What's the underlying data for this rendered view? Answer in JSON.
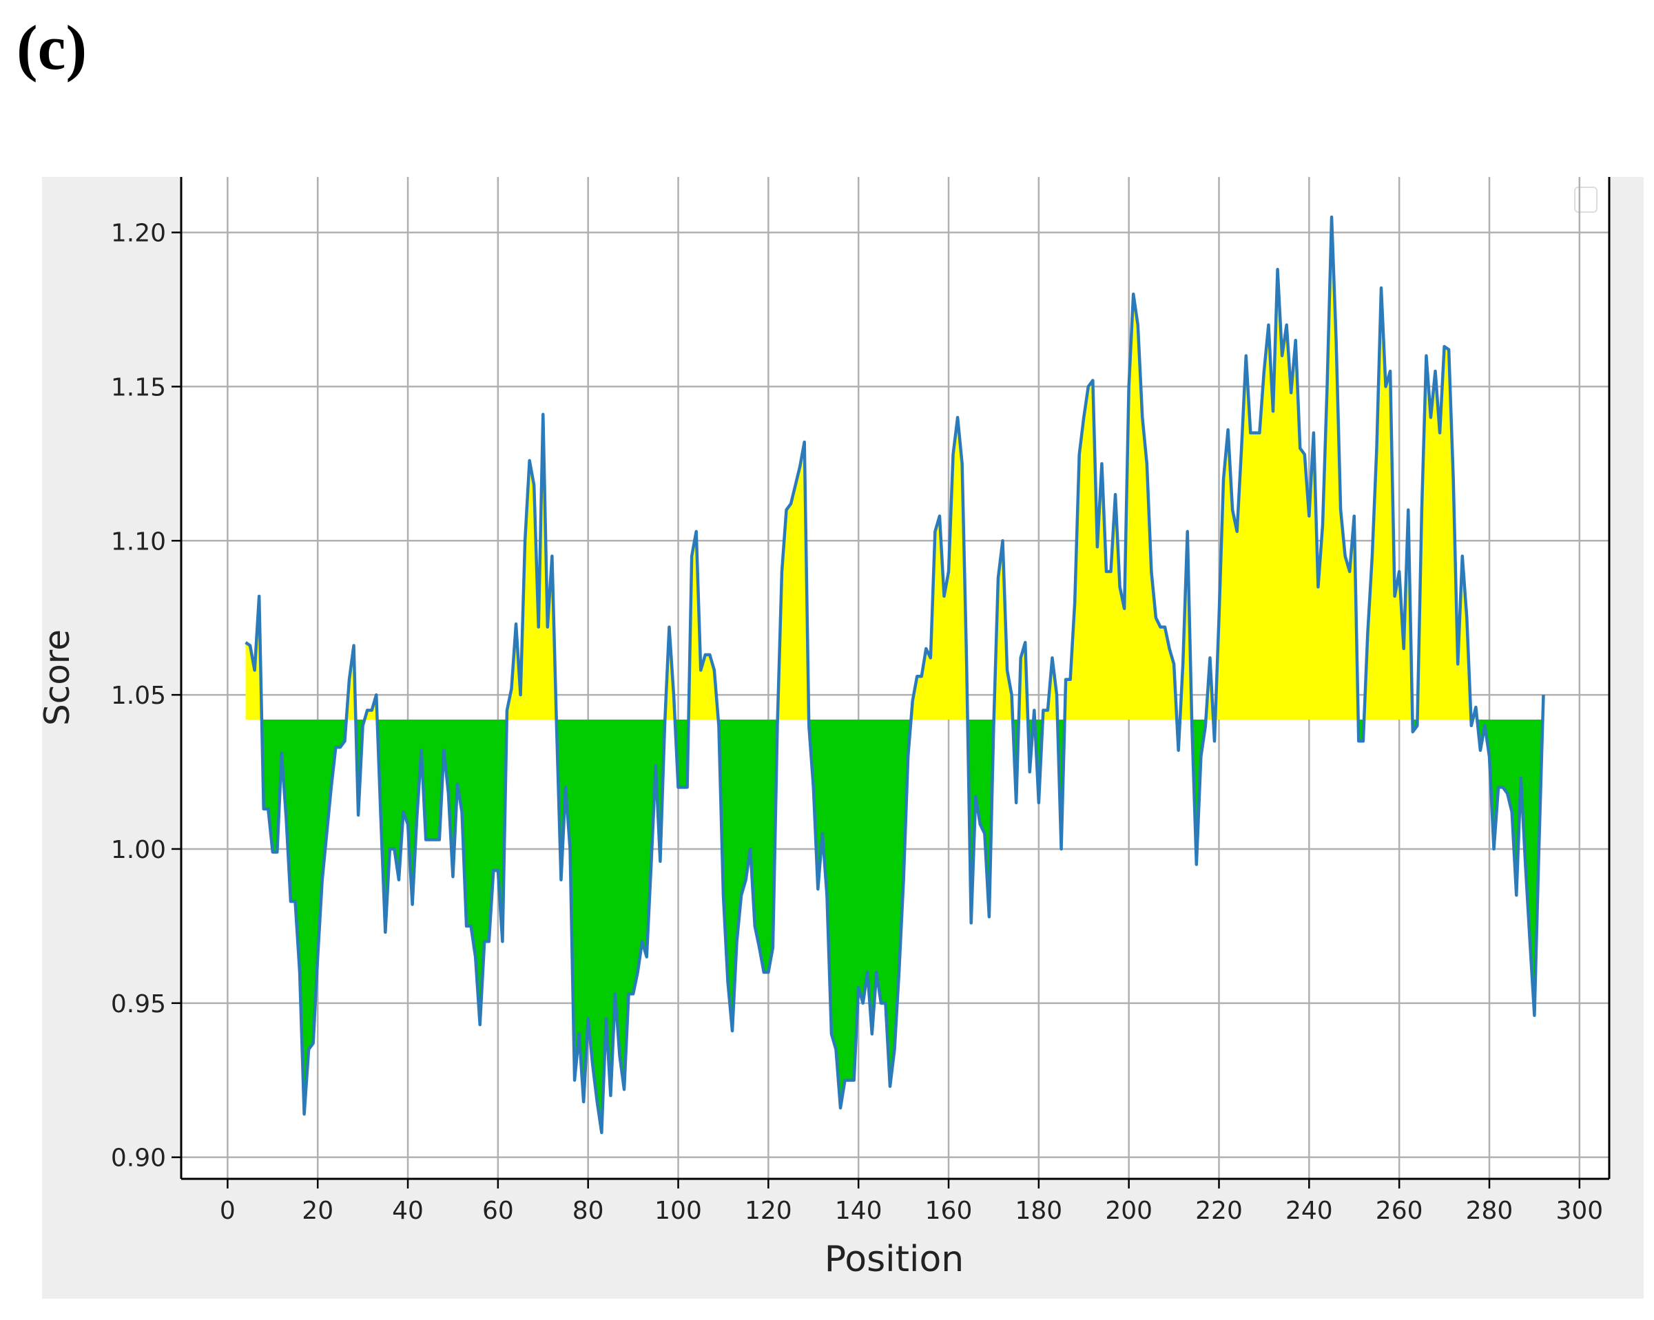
{
  "panel_label": "(c)",
  "chart_data": {
    "type": "line",
    "x_label": "Position",
    "y_label": "Score",
    "color": "#2b7bba",
    "fill_threshold": 1.042,
    "fill_above_color": "#ffff00",
    "fill_below_color": "#00cc00",
    "grid": true,
    "xlim": [
      -10.3,
      306.6
    ],
    "ylim": [
      0.893,
      1.218
    ],
    "xticks": [
      0,
      20,
      40,
      60,
      80,
      100,
      120,
      140,
      160,
      180,
      200,
      220,
      240,
      260,
      280,
      300
    ],
    "yticks": [
      {
        "value": 0.9,
        "label": "0.90"
      },
      {
        "value": 0.95,
        "label": "0.95"
      },
      {
        "value": 1,
        "label": "1.00"
      },
      {
        "value": 1.05,
        "label": "1.05"
      },
      {
        "value": 1.1,
        "label": "1.10"
      },
      {
        "value": 1.15,
        "label": "1.15"
      },
      {
        "value": 1.2,
        "label": "1.20"
      }
    ],
    "x": [
      4,
      5,
      6,
      7,
      8,
      9,
      10,
      11,
      12,
      13,
      14,
      15,
      16,
      17,
      18,
      19,
      20,
      21,
      22,
      23,
      24,
      25,
      26,
      27,
      28,
      29,
      30,
      31,
      32,
      33,
      34,
      35,
      36,
      37,
      38,
      39,
      40,
      41,
      42,
      43,
      44,
      45,
      46,
      47,
      48,
      49,
      50,
      51,
      52,
      53,
      54,
      55,
      56,
      57,
      58,
      59,
      60,
      61,
      62,
      63,
      64,
      65,
      66,
      67,
      68,
      69,
      70,
      71,
      72,
      73,
      74,
      75,
      76,
      77,
      78,
      79,
      80,
      81,
      82,
      83,
      84,
      85,
      86,
      87,
      88,
      89,
      90,
      91,
      92,
      93,
      94,
      95,
      96,
      97,
      98,
      99,
      100,
      101,
      102,
      103,
      104,
      105,
      106,
      107,
      108,
      109,
      110,
      111,
      112,
      113,
      114,
      115,
      116,
      117,
      118,
      119,
      120,
      121,
      122,
      123,
      124,
      125,
      126,
      127,
      128,
      129,
      130,
      131,
      132,
      133,
      134,
      135,
      136,
      137,
      138,
      139,
      140,
      141,
      142,
      143,
      144,
      145,
      146,
      147,
      148,
      149,
      150,
      151,
      152,
      153,
      154,
      155,
      156,
      157,
      158,
      159,
      160,
      161,
      162,
      163,
      164,
      165,
      166,
      167,
      168,
      169,
      170,
      171,
      172,
      173,
      174,
      175,
      176,
      177,
      178,
      179,
      180,
      181,
      182,
      183,
      184,
      185,
      186,
      187,
      188,
      189,
      190,
      191,
      192,
      193,
      194,
      195,
      196,
      197,
      198,
      199,
      200,
      201,
      202,
      203,
      204,
      205,
      206,
      207,
      208,
      209,
      210,
      211,
      212,
      213,
      214,
      215,
      216,
      217,
      218,
      219,
      220,
      221,
      222,
      223,
      224,
      225,
      226,
      227,
      228,
      229,
      230,
      231,
      232,
      233,
      234,
      235,
      236,
      237,
      238,
      239,
      240,
      241,
      242,
      243,
      244,
      245,
      246,
      247,
      248,
      249,
      250,
      251,
      252,
      253,
      254,
      255,
      256,
      257,
      258,
      259,
      260,
      261,
      262,
      263,
      264,
      265,
      266,
      267,
      268,
      269,
      270,
      271,
      272,
      273,
      274,
      275,
      276,
      277,
      278,
      279,
      280,
      281,
      282,
      283,
      284,
      285,
      286,
      287,
      288,
      289,
      290,
      291,
      292
    ],
    "values": [
      1.067,
      1.066,
      1.058,
      1.082,
      1.013,
      1.013,
      0.999,
      0.999,
      1.031,
      1.01,
      0.983,
      0.983,
      0.96,
      0.914,
      0.935,
      0.937,
      0.965,
      0.99,
      1.005,
      1.02,
      1.033,
      1.033,
      1.035,
      1.055,
      1.066,
      1.011,
      1.04,
      1.045,
      1.045,
      1.05,
      1.01,
      0.973,
      1.0,
      1.0,
      0.99,
      1.012,
      1.008,
      0.982,
      1.01,
      1.032,
      1.003,
      1.003,
      1.003,
      1.003,
      1.032,
      1.018,
      0.991,
      1.021,
      1.012,
      0.975,
      0.975,
      0.965,
      0.943,
      0.97,
      0.97,
      0.993,
      0.993,
      0.97,
      1.045,
      1.052,
      1.073,
      1.05,
      1.1,
      1.126,
      1.118,
      1.072,
      1.141,
      1.072,
      1.095,
      1.04,
      0.99,
      1.02,
      1.0,
      0.925,
      0.94,
      0.918,
      0.945,
      0.93,
      0.918,
      0.908,
      0.945,
      0.92,
      0.953,
      0.933,
      0.922,
      0.953,
      0.953,
      0.96,
      0.97,
      0.965,
      0.995,
      1.027,
      0.996,
      1.04,
      1.072,
      1.05,
      1.02,
      1.02,
      1.02,
      1.095,
      1.103,
      1.058,
      1.063,
      1.063,
      1.058,
      1.04,
      0.985,
      0.957,
      0.941,
      0.97,
      0.985,
      0.99,
      1.0,
      0.975,
      0.968,
      0.96,
      0.96,
      0.968,
      1.04,
      1.09,
      1.11,
      1.112,
      1.118,
      1.124,
      1.132,
      1.04,
      1.02,
      0.987,
      1.005,
      0.985,
      0.94,
      0.935,
      0.916,
      0.925,
      0.925,
      0.925,
      0.955,
      0.95,
      0.96,
      0.94,
      0.96,
      0.95,
      0.95,
      0.923,
      0.935,
      0.96,
      0.99,
      1.03,
      1.048,
      1.056,
      1.056,
      1.065,
      1.062,
      1.103,
      1.108,
      1.082,
      1.09,
      1.128,
      1.14,
      1.125,
      1.06,
      0.976,
      1.017,
      1.008,
      1.005,
      0.978,
      1.04,
      1.088,
      1.1,
      1.058,
      1.05,
      1.015,
      1.062,
      1.067,
      1.025,
      1.045,
      1.015,
      1.045,
      1.045,
      1.062,
      1.05,
      1.0,
      1.055,
      1.055,
      1.08,
      1.128,
      1.14,
      1.15,
      1.152,
      1.098,
      1.125,
      1.09,
      1.09,
      1.115,
      1.085,
      1.078,
      1.15,
      1.18,
      1.17,
      1.14,
      1.125,
      1.09,
      1.075,
      1.072,
      1.072,
      1.065,
      1.06,
      1.032,
      1.06,
      1.103,
      1.04,
      0.995,
      1.03,
      1.04,
      1.062,
      1.035,
      1.075,
      1.12,
      1.136,
      1.11,
      1.103,
      1.13,
      1.16,
      1.135,
      1.135,
      1.135,
      1.155,
      1.17,
      1.142,
      1.188,
      1.16,
      1.17,
      1.148,
      1.165,
      1.13,
      1.128,
      1.108,
      1.135,
      1.085,
      1.105,
      1.15,
      1.205,
      1.165,
      1.11,
      1.095,
      1.09,
      1.108,
      1.035,
      1.035,
      1.07,
      1.095,
      1.13,
      1.182,
      1.15,
      1.155,
      1.082,
      1.09,
      1.065,
      1.11,
      1.038,
      1.04,
      1.11,
      1.16,
      1.14,
      1.155,
      1.135,
      1.163,
      1.162,
      1.12,
      1.06,
      1.095,
      1.075,
      1.04,
      1.046,
      1.032,
      1.04,
      1.03,
      1.0,
      1.02,
      1.02,
      1.018,
      1.012,
      0.985,
      1.023,
      0.995,
      0.97,
      0.946,
      1.0,
      1.05
    ]
  }
}
